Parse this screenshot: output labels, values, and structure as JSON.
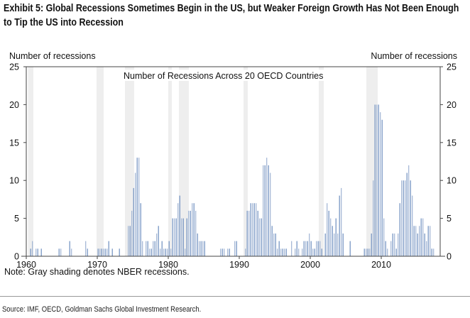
{
  "header": {
    "title": "Exhibit 5: Global Recessions Sometimes Begin in the US, but Weaker Foreign Growth Has Not Been Enough to Tip the US into Recession"
  },
  "footer": {
    "note": "Note: Gray shading denotes NBER recessions.",
    "source": "Source: IMF, OECD, Goldman Sachs Global Investment Research."
  },
  "chart_data": {
    "type": "bar",
    "title": "Number of Recessions Across 20 OECD Countries",
    "ylabel_left": "Number of recessions",
    "ylabel_right": "Number of recessions",
    "xlabel": "",
    "ylim": [
      0,
      25
    ],
    "yticks": [
      0,
      5,
      10,
      15,
      20,
      25
    ],
    "xlim": [
      1960,
      2018
    ],
    "xticks": [
      1960,
      1970,
      1980,
      1990,
      2000,
      2010
    ],
    "frequency": "quarterly",
    "start_year": 1960,
    "series": [
      {
        "name": "Number of Recessions Across 20 OECD Countries",
        "color": "#6d8ebf",
        "values_by_year": {
          "1960": [
            0,
            0,
            1,
            2
          ],
          "1961": [
            0,
            1,
            1,
            0
          ],
          "1962": [
            1,
            0,
            0,
            0
          ],
          "1963": [
            0,
            0,
            0,
            0
          ],
          "1964": [
            0,
            0,
            1,
            1
          ],
          "1965": [
            0,
            0,
            0,
            0
          ],
          "1966": [
            2,
            1,
            0,
            0
          ],
          "1967": [
            0,
            0,
            0,
            0
          ],
          "1968": [
            0,
            2,
            1,
            0
          ],
          "1969": [
            0,
            0,
            0,
            0
          ],
          "1970": [
            1,
            1,
            1,
            1
          ],
          "1971": [
            1,
            1,
            2,
            0
          ],
          "1972": [
            1,
            0,
            0,
            0
          ],
          "1973": [
            1,
            0,
            0,
            0
          ],
          "1974": [
            0,
            4,
            4,
            6
          ],
          "1975": [
            9,
            11,
            13,
            13
          ],
          "1976": [
            7,
            2,
            0,
            2
          ],
          "1977": [
            2,
            1,
            1,
            2
          ],
          "1978": [
            2,
            3,
            4,
            1
          ],
          "1979": [
            2,
            1,
            1,
            1
          ],
          "1980": [
            2,
            1,
            5,
            5
          ],
          "1981": [
            5,
            7,
            8,
            5
          ],
          "1982": [
            5,
            1,
            5,
            6
          ],
          "1983": [
            6,
            7,
            7,
            6
          ],
          "1984": [
            3,
            2,
            2,
            2
          ],
          "1985": [
            2,
            0,
            0,
            0
          ],
          "1986": [
            0,
            0,
            0,
            0
          ],
          "1987": [
            0,
            1,
            1,
            1
          ],
          "1988": [
            0,
            1,
            1,
            0
          ],
          "1989": [
            0,
            2,
            2,
            0
          ],
          "1990": [
            0,
            0,
            0,
            1
          ],
          "1991": [
            6,
            6,
            7,
            7
          ],
          "1992": [
            7,
            7,
            6,
            5
          ],
          "1993": [
            5,
            12,
            12,
            13
          ],
          "1994": [
            12,
            11,
            4,
            3
          ],
          "1995": [
            3,
            1,
            2,
            1
          ],
          "1996": [
            1,
            1,
            1,
            0
          ],
          "1997": [
            0,
            2,
            0,
            1
          ],
          "1998": [
            2,
            1,
            0,
            1
          ],
          "1999": [
            2,
            2,
            2,
            3
          ],
          "2000": [
            2,
            1,
            1,
            2
          ],
          "2001": [
            2,
            2,
            1,
            0
          ],
          "2002": [
            3,
            7,
            6,
            5
          ],
          "2003": [
            4,
            3,
            5,
            3
          ],
          "2004": [
            8,
            9,
            3,
            0
          ],
          "2005": [
            0,
            0,
            2,
            0
          ],
          "2006": [
            0,
            0,
            0,
            0
          ],
          "2007": [
            0,
            0,
            1,
            1
          ],
          "2008": [
            1,
            1,
            3,
            10
          ],
          "2009": [
            20,
            20,
            20,
            19
          ],
          "2010": [
            18,
            5,
            2,
            1
          ],
          "2011": [
            0,
            2,
            3,
            3
          ],
          "2012": [
            1,
            3,
            7,
            10
          ],
          "2013": [
            10,
            10,
            11,
            12
          ],
          "2014": [
            10,
            8,
            4,
            4
          ],
          "2015": [
            3,
            4,
            5,
            5
          ],
          "2016": [
            3,
            2,
            4,
            4
          ],
          "2017": [
            1,
            1,
            0,
            0
          ]
        }
      }
    ],
    "shaded_periods_label": "NBER recessions",
    "shaded_periods": [
      [
        1960.25,
        1961.0
      ],
      [
        1969.9,
        1970.9
      ],
      [
        1973.9,
        1975.2
      ],
      [
        1980.0,
        1980.5
      ],
      [
        1981.5,
        1982.9
      ],
      [
        1990.6,
        1991.2
      ],
      [
        2001.2,
        2001.9
      ],
      [
        2007.9,
        2009.5
      ]
    ],
    "legend": "top-center",
    "grid": false
  }
}
